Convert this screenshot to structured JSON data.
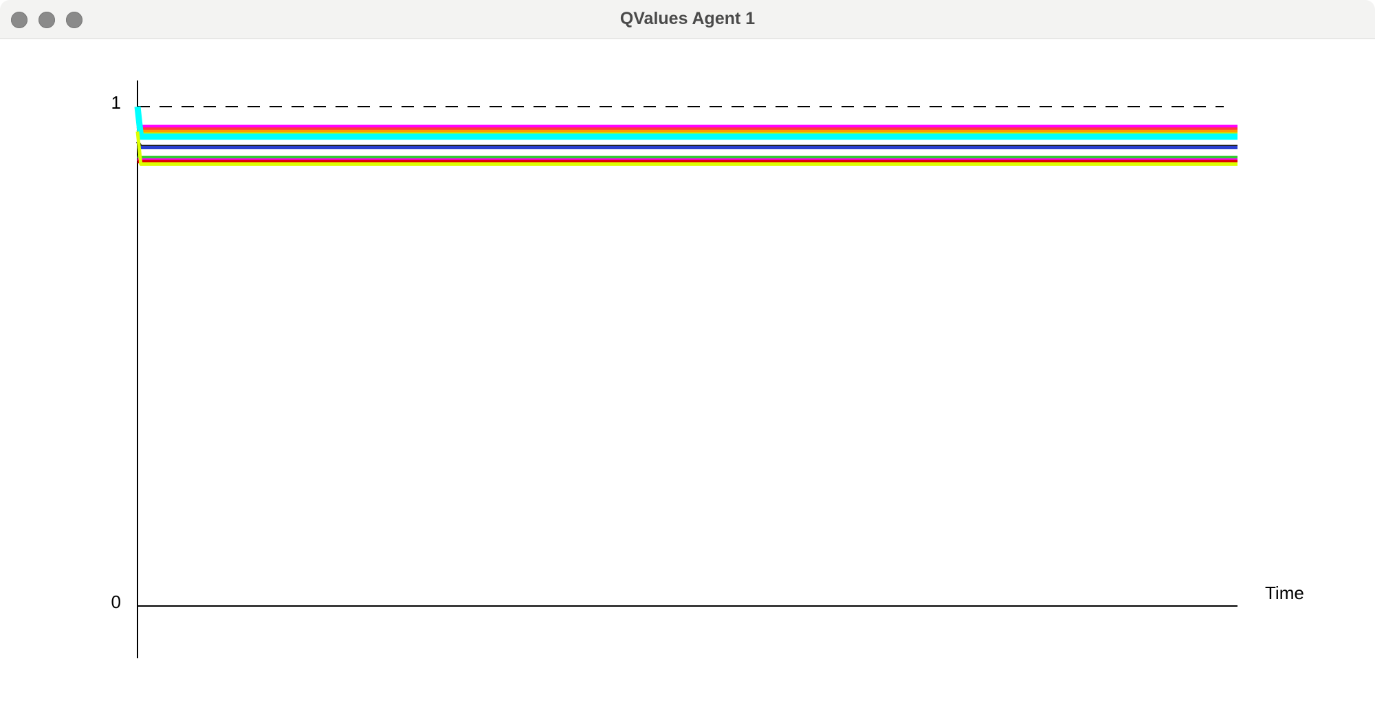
{
  "window": {
    "title": "QValues Agent 1",
    "buttons": [
      "close",
      "minimize",
      "maximize"
    ]
  },
  "chart_data": {
    "type": "line",
    "title": "",
    "xlabel": "Time",
    "ylabel": "",
    "ylim": [
      0,
      1
    ],
    "yticks": [
      "0",
      "1"
    ],
    "reference_line": {
      "y": 1,
      "style": "dashed",
      "color": "#000000"
    },
    "x": [
      0,
      0.003,
      1
    ],
    "series": [
      {
        "color": "#ff00ff",
        "values": [
          0.97,
          0.96,
          0.96
        ]
      },
      {
        "color": "#ff3b3b",
        "values": [
          0.96,
          0.955,
          0.955
        ]
      },
      {
        "color": "#ff9900",
        "values": [
          0.955,
          0.95,
          0.95
        ]
      },
      {
        "color": "#c8f000",
        "values": [
          0.95,
          0.945,
          0.945
        ]
      },
      {
        "color": "#33cc33",
        "values": [
          0.94,
          0.94,
          0.94
        ]
      },
      {
        "color": "#00ffff",
        "values": [
          1.0,
          0.94,
          0.94
        ]
      },
      {
        "color": "#222222",
        "values": [
          0.93,
          0.92,
          0.92
        ]
      },
      {
        "color": "#2a3fcf",
        "values": [
          0.92,
          0.918,
          0.918
        ]
      },
      {
        "color": "#33cc33",
        "values": [
          0.9,
          0.898,
          0.898
        ]
      },
      {
        "color": "#ff00ff",
        "values": [
          0.895,
          0.893,
          0.893
        ]
      },
      {
        "color": "#e00000",
        "values": [
          0.89,
          0.89,
          0.89
        ]
      },
      {
        "color": "#ddff00",
        "values": [
          0.95,
          0.885,
          0.885
        ]
      }
    ]
  }
}
